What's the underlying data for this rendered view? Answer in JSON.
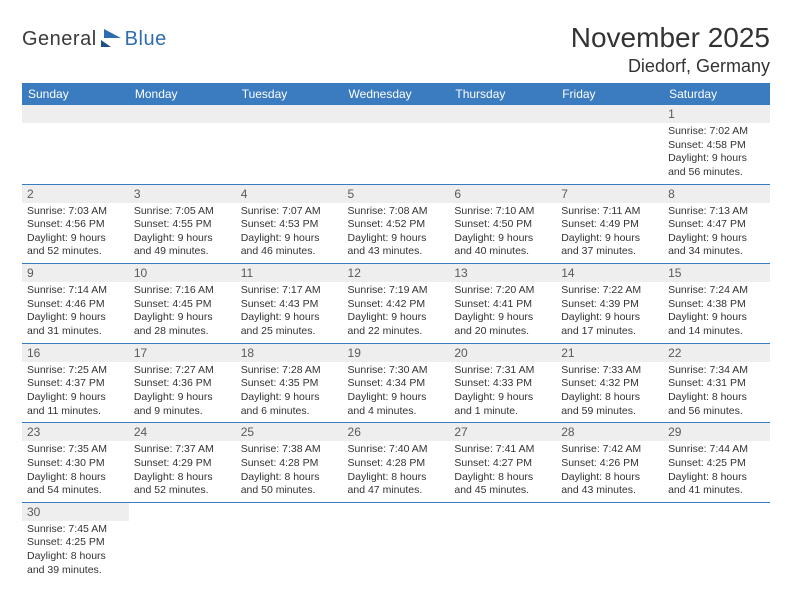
{
  "logo": {
    "part1": "General",
    "part2": "Blue"
  },
  "title": "November 2025",
  "location": "Diedorf, Germany",
  "colors": {
    "header_bg": "#3b7bbf",
    "header_text": "#ffffff",
    "daynum_bg": "#eeeeee",
    "row_divider": "#3b7bbf",
    "logo_blue": "#2f6db0",
    "text": "#333333"
  },
  "daynames": [
    "Sunday",
    "Monday",
    "Tuesday",
    "Wednesday",
    "Thursday",
    "Friday",
    "Saturday"
  ],
  "weeks": [
    [
      null,
      null,
      null,
      null,
      null,
      null,
      {
        "n": "1",
        "sr": "7:02 AM",
        "ss": "4:58 PM",
        "dl": "9 hours and 56 minutes."
      }
    ],
    [
      {
        "n": "2",
        "sr": "7:03 AM",
        "ss": "4:56 PM",
        "dl": "9 hours and 52 minutes."
      },
      {
        "n": "3",
        "sr": "7:05 AM",
        "ss": "4:55 PM",
        "dl": "9 hours and 49 minutes."
      },
      {
        "n": "4",
        "sr": "7:07 AM",
        "ss": "4:53 PM",
        "dl": "9 hours and 46 minutes."
      },
      {
        "n": "5",
        "sr": "7:08 AM",
        "ss": "4:52 PM",
        "dl": "9 hours and 43 minutes."
      },
      {
        "n": "6",
        "sr": "7:10 AM",
        "ss": "4:50 PM",
        "dl": "9 hours and 40 minutes."
      },
      {
        "n": "7",
        "sr": "7:11 AM",
        "ss": "4:49 PM",
        "dl": "9 hours and 37 minutes."
      },
      {
        "n": "8",
        "sr": "7:13 AM",
        "ss": "4:47 PM",
        "dl": "9 hours and 34 minutes."
      }
    ],
    [
      {
        "n": "9",
        "sr": "7:14 AM",
        "ss": "4:46 PM",
        "dl": "9 hours and 31 minutes."
      },
      {
        "n": "10",
        "sr": "7:16 AM",
        "ss": "4:45 PM",
        "dl": "9 hours and 28 minutes."
      },
      {
        "n": "11",
        "sr": "7:17 AM",
        "ss": "4:43 PM",
        "dl": "9 hours and 25 minutes."
      },
      {
        "n": "12",
        "sr": "7:19 AM",
        "ss": "4:42 PM",
        "dl": "9 hours and 22 minutes."
      },
      {
        "n": "13",
        "sr": "7:20 AM",
        "ss": "4:41 PM",
        "dl": "9 hours and 20 minutes."
      },
      {
        "n": "14",
        "sr": "7:22 AM",
        "ss": "4:39 PM",
        "dl": "9 hours and 17 minutes."
      },
      {
        "n": "15",
        "sr": "7:24 AM",
        "ss": "4:38 PM",
        "dl": "9 hours and 14 minutes."
      }
    ],
    [
      {
        "n": "16",
        "sr": "7:25 AM",
        "ss": "4:37 PM",
        "dl": "9 hours and 11 minutes."
      },
      {
        "n": "17",
        "sr": "7:27 AM",
        "ss": "4:36 PM",
        "dl": "9 hours and 9 minutes."
      },
      {
        "n": "18",
        "sr": "7:28 AM",
        "ss": "4:35 PM",
        "dl": "9 hours and 6 minutes."
      },
      {
        "n": "19",
        "sr": "7:30 AM",
        "ss": "4:34 PM",
        "dl": "9 hours and 4 minutes."
      },
      {
        "n": "20",
        "sr": "7:31 AM",
        "ss": "4:33 PM",
        "dl": "9 hours and 1 minute."
      },
      {
        "n": "21",
        "sr": "7:33 AM",
        "ss": "4:32 PM",
        "dl": "8 hours and 59 minutes."
      },
      {
        "n": "22",
        "sr": "7:34 AM",
        "ss": "4:31 PM",
        "dl": "8 hours and 56 minutes."
      }
    ],
    [
      {
        "n": "23",
        "sr": "7:35 AM",
        "ss": "4:30 PM",
        "dl": "8 hours and 54 minutes."
      },
      {
        "n": "24",
        "sr": "7:37 AM",
        "ss": "4:29 PM",
        "dl": "8 hours and 52 minutes."
      },
      {
        "n": "25",
        "sr": "7:38 AM",
        "ss": "4:28 PM",
        "dl": "8 hours and 50 minutes."
      },
      {
        "n": "26",
        "sr": "7:40 AM",
        "ss": "4:28 PM",
        "dl": "8 hours and 47 minutes."
      },
      {
        "n": "27",
        "sr": "7:41 AM",
        "ss": "4:27 PM",
        "dl": "8 hours and 45 minutes."
      },
      {
        "n": "28",
        "sr": "7:42 AM",
        "ss": "4:26 PM",
        "dl": "8 hours and 43 minutes."
      },
      {
        "n": "29",
        "sr": "7:44 AM",
        "ss": "4:25 PM",
        "dl": "8 hours and 41 minutes."
      }
    ],
    [
      {
        "n": "30",
        "sr": "7:45 AM",
        "ss": "4:25 PM",
        "dl": "8 hours and 39 minutes."
      },
      null,
      null,
      null,
      null,
      null,
      null
    ]
  ],
  "labels": {
    "sunrise": "Sunrise:",
    "sunset": "Sunset:",
    "daylight": "Daylight:"
  }
}
